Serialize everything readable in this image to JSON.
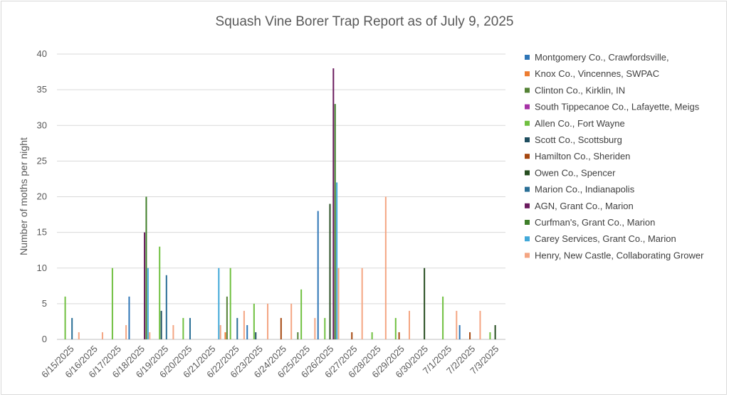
{
  "chart_data": {
    "type": "bar",
    "title": "Squash Vine Borer Trap Report as of July 9, 2025",
    "xlabel": "",
    "ylabel": "Number of moths per night",
    "ylim": [
      0,
      40
    ],
    "yticks": [
      0,
      5,
      10,
      15,
      20,
      25,
      30,
      35,
      40
    ],
    "grid": true,
    "legend_position": "right",
    "categories": [
      "6/15/2025",
      "6/16/2025",
      "6/17/2025",
      "6/18/2025",
      "6/19/2025",
      "6/20/2025",
      "6/21/2025",
      "6/22/2025",
      "6/23/2025",
      "6/24/2025",
      "6/25/2025",
      "6/26/2025",
      "6/27/2025",
      "6/28/2025",
      "6/29/2025",
      "6/30/2025",
      "7/1/2025",
      "7/2/2025",
      "7/3/2025"
    ],
    "series": [
      {
        "name": "Montgomery Co., Crawfordsville,",
        "color": "#2e75b6",
        "values": [
          0,
          0,
          0,
          6,
          0,
          0,
          0,
          0,
          2,
          0,
          0,
          18,
          0,
          0,
          0,
          0,
          0,
          2,
          0
        ]
      },
      {
        "name": "Knox Co., Vincennes, SWPAC",
        "color": "#ed7d31",
        "values": [
          0,
          0,
          0,
          0,
          0,
          0,
          0,
          1,
          0,
          0,
          0,
          0,
          0,
          0,
          0,
          0,
          0,
          0,
          0
        ]
      },
      {
        "name": "Clinton Co., Kirklin, IN",
        "color": "#548235",
        "values": [
          0,
          0,
          0,
          0,
          0,
          0,
          0,
          6,
          0,
          0,
          1,
          0,
          0,
          0,
          0,
          0,
          0,
          0,
          0
        ]
      },
      {
        "name": "South Tippecanoe Co., Lafayette, Meigs",
        "color": "#a632a6",
        "values": [
          0,
          0,
          0,
          0,
          0,
          0,
          0,
          0,
          0,
          0,
          0,
          0,
          0,
          0,
          0,
          0,
          0,
          0,
          0
        ]
      },
      {
        "name": "Allen Co., Fort Wayne",
        "color": "#70c040",
        "values": [
          6,
          0,
          10,
          0,
          13,
          3,
          0,
          10,
          5,
          0,
          7,
          3,
          0,
          1,
          3,
          0,
          6,
          0,
          1
        ]
      },
      {
        "name": "Scott Co., Scottsburg",
        "color": "#1f4e5f",
        "values": [
          0,
          0,
          0,
          0,
          4,
          0,
          0,
          0,
          1,
          0,
          0,
          0,
          0,
          0,
          0,
          0,
          0,
          0,
          0
        ]
      },
      {
        "name": "Hamilton Co., Sheriden",
        "color": "#a5470f",
        "values": [
          0,
          0,
          0,
          0,
          0,
          0,
          0,
          0,
          0,
          3,
          0,
          0,
          1,
          0,
          1,
          0,
          0,
          1,
          0
        ]
      },
      {
        "name": "Owen Co., Spencer",
        "color": "#264d1f",
        "values": [
          0,
          0,
          0,
          0,
          0,
          0,
          0,
          0,
          0,
          0,
          0,
          19,
          0,
          0,
          0,
          10,
          0,
          0,
          2
        ]
      },
      {
        "name": "Marion Co., Indianapolis",
        "color": "#2a6f96",
        "values": [
          3,
          0,
          0,
          0,
          9,
          3,
          0,
          3,
          0,
          0,
          0,
          0,
          0,
          0,
          0,
          0,
          0,
          0,
          0
        ]
      },
      {
        "name": "AGN, Grant Co., Marion",
        "color": "#6a1b5e",
        "values": [
          0,
          0,
          0,
          15,
          0,
          0,
          0,
          0,
          0,
          0,
          0,
          38,
          0,
          0,
          0,
          0,
          0,
          0,
          0
        ]
      },
      {
        "name": "Curfman's, Grant Co., Marion",
        "color": "#3f7f2a",
        "values": [
          0,
          0,
          0,
          20,
          0,
          0,
          0,
          0,
          0,
          0,
          0,
          33,
          0,
          0,
          0,
          0,
          0,
          0,
          0
        ]
      },
      {
        "name": "Carey Services, Grant Co., Marion",
        "color": "#41a8d8",
        "values": [
          0,
          0,
          0,
          10,
          0,
          0,
          10,
          0,
          0,
          0,
          0,
          22,
          0,
          0,
          0,
          0,
          0,
          0,
          0
        ]
      },
      {
        "name": "Henry, New Castle, Collaborating Grower",
        "color": "#f4a582",
        "values": [
          1,
          1,
          2,
          1,
          2,
          0,
          2,
          4,
          5,
          5,
          3,
          10,
          10,
          20,
          4,
          0,
          4,
          4,
          0
        ]
      }
    ]
  }
}
